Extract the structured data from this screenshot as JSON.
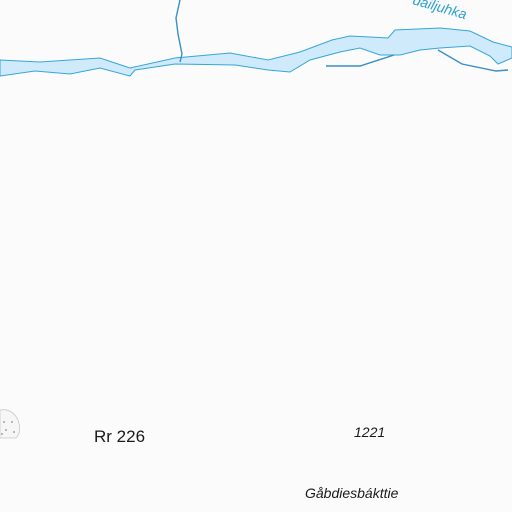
{
  "map": {
    "colors": {
      "background": "#fbfbfb",
      "water_fill": "#cfeafb",
      "water_stroke": "#36a6d9",
      "stream": "#3a8fc4",
      "label_dark": "#1a1a1a",
      "label_water": "#2aa0d2",
      "marsh_symbol": "#8a8a8a"
    },
    "labels": {
      "river": "dailjuhka",
      "road": "Rr 226",
      "elevation": "1221",
      "place": "Gåbdiesbákttie"
    },
    "symbols": {
      "marsh": "marsh-symbol"
    }
  }
}
